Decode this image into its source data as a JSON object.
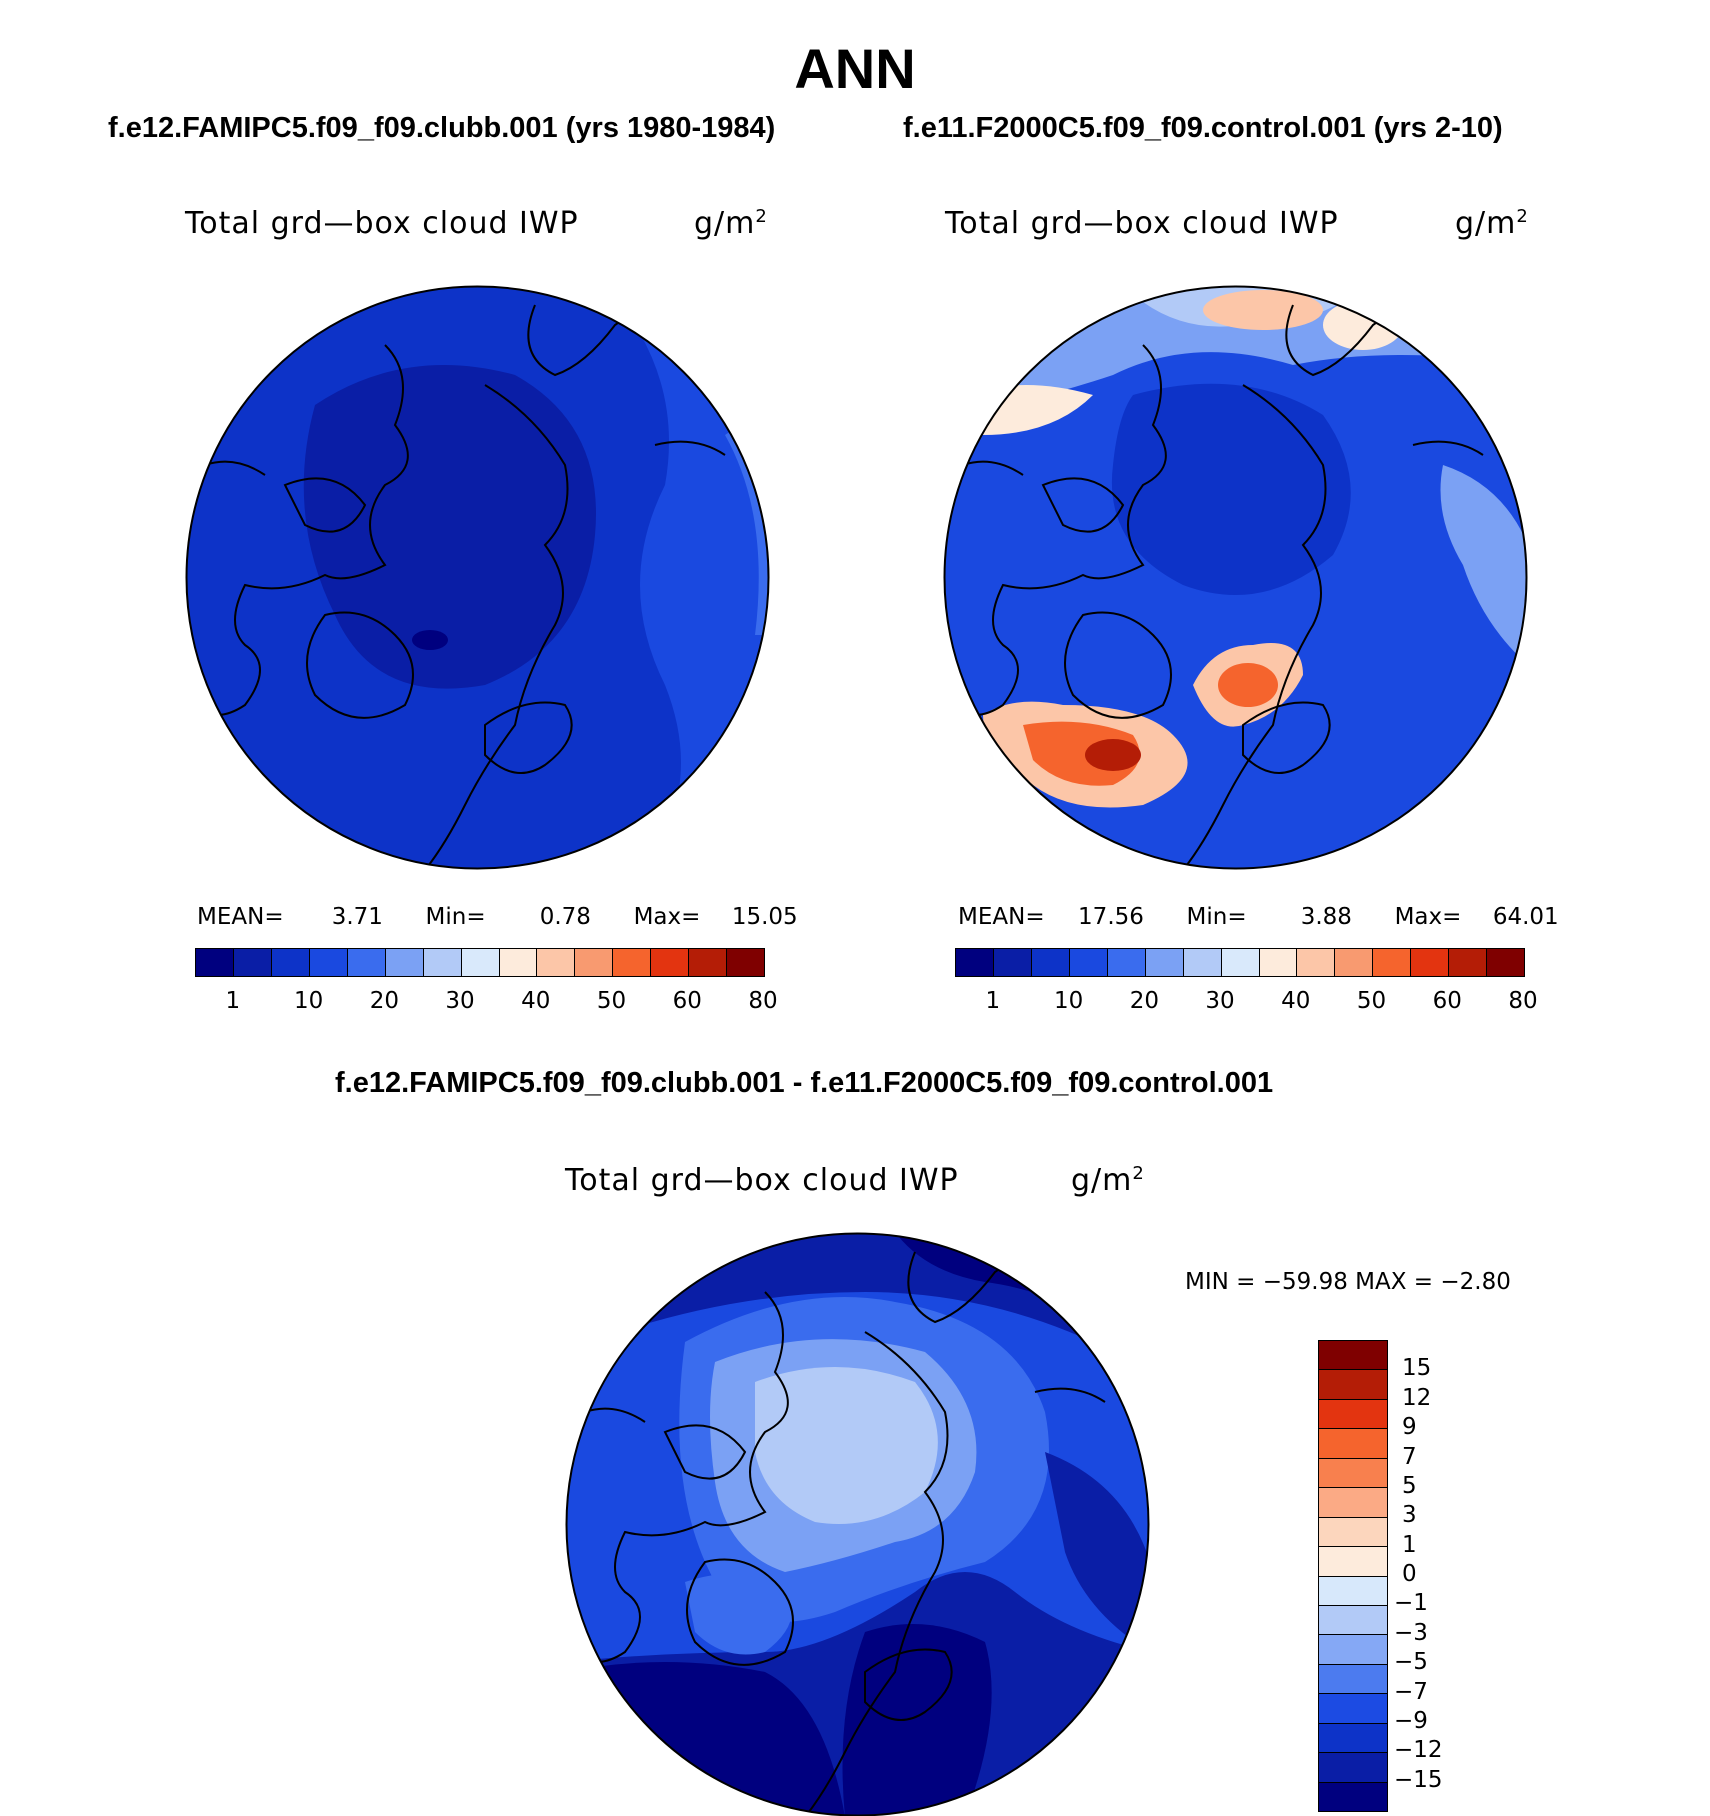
{
  "figure": {
    "title": "ANN"
  },
  "panels": {
    "left": {
      "case_title": "f.e12.FAMIPC5.f09_f09.clubb.001 (yrs 1980-1984)",
      "variable": "Total grd—box cloud IWP",
      "units_base": "g/m",
      "units_exp": "2",
      "stats": {
        "mean_label": "MEAN=",
        "mean": "3.71",
        "min_label": "Min=",
        "min": "0.78",
        "max_label": "Max=",
        "max": "15.05"
      }
    },
    "right": {
      "case_title": "f.e11.F2000C5.f09_f09.control.001 (yrs 2-10)",
      "variable": "Total grd—box cloud IWP",
      "units_base": "g/m",
      "units_exp": "2",
      "stats": {
        "mean_label": "MEAN=",
        "mean": "17.56",
        "min_label": "Min=",
        "min": "3.88",
        "max_label": "Max=",
        "max": "64.01"
      }
    },
    "diff": {
      "case_title": "f.e12.FAMIPC5.f09_f09.clubb.001 - f.e11.F2000C5.f09_f09.control.001",
      "variable": "Total grd—box cloud IWP",
      "units_base": "g/m",
      "units_exp": "2",
      "stats": "MIN = −59.98  MAX =   −2.80"
    }
  },
  "colorbar_abs": {
    "colors": [
      "#00007f",
      "#0a1ea6",
      "#0d33c8",
      "#1a49e0",
      "#3a6cee",
      "#7ba1f4",
      "#b2caf7",
      "#d9e9fb",
      "#fdebdc",
      "#fcc6a8",
      "#f89a70",
      "#f5642d",
      "#e33410",
      "#b41d06",
      "#7f0000"
    ],
    "tick_labels": [
      "1",
      "10",
      "20",
      "30",
      "40",
      "50",
      "60",
      "80"
    ]
  },
  "colorbar_diff": {
    "colors": [
      "#7f0000",
      "#b41d06",
      "#e33410",
      "#f5642d",
      "#f8804e",
      "#fbaa85",
      "#fcd6bd",
      "#fdebdc",
      "#d7e8fb",
      "#b2caf7",
      "#85a8f5",
      "#4c7bef",
      "#1c4be3",
      "#0d33c8",
      "#0a1ea6",
      "#00007f"
    ],
    "tick_labels": [
      "15",
      "12",
      "9",
      "7",
      "5",
      "3",
      "1",
      "0",
      "−1",
      "−3",
      "−5",
      "−7",
      "−9",
      "−12",
      "−15"
    ]
  }
}
